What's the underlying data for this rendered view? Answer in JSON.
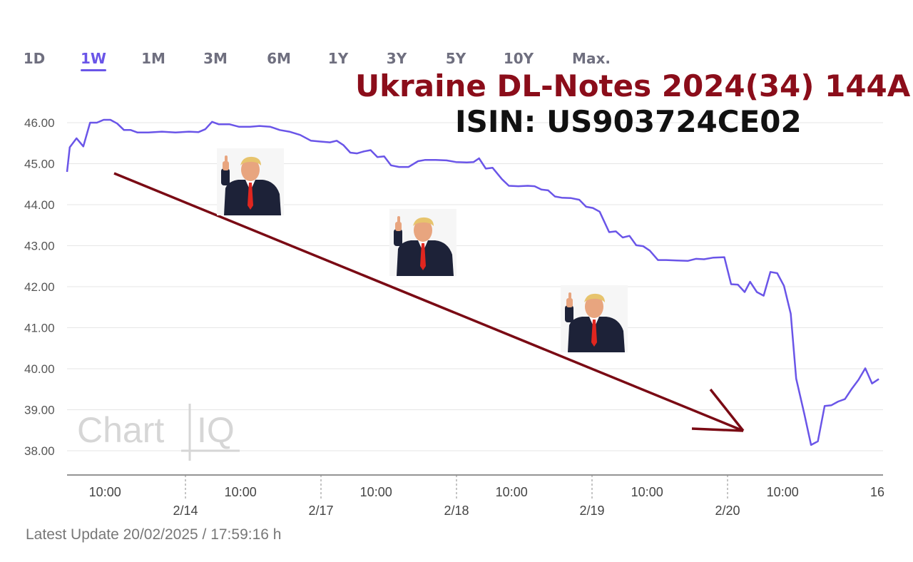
{
  "tabs": [
    {
      "label": "1D",
      "active": false
    },
    {
      "label": "1W",
      "active": true
    },
    {
      "label": "1M",
      "active": false
    },
    {
      "label": "3M",
      "active": false
    },
    {
      "label": "6M",
      "active": false
    },
    {
      "label": "1Y",
      "active": false
    },
    {
      "label": "3Y",
      "active": false
    },
    {
      "label": "5Y",
      "active": false
    },
    {
      "label": "10Y",
      "active": false
    },
    {
      "label": "Max.",
      "active": false
    }
  ],
  "annotation": {
    "title": "Ukraine DL-Notes 2024(34) 144A",
    "isin": "ISIN: US903724CE02",
    "title_color": "#8b0d1a",
    "arrow_color": "#7a0a14",
    "photos": [
      {
        "name": "thumbs-up-photo-1"
      },
      {
        "name": "thumbs-up-photo-2"
      },
      {
        "name": "thumbs-up-photo-3"
      }
    ]
  },
  "watermark": {
    "left": "Chart",
    "right": "IQ"
  },
  "footer": {
    "latest_update": "Latest Update 20/02/2025 / 17:59:16 h"
  },
  "chart_data": {
    "type": "line",
    "line_color": "#6a55e8",
    "ylim": [
      37.4,
      46.3
    ],
    "yticks": [
      "38.00",
      "39.00",
      "40.00",
      "41.00",
      "42.00",
      "43.00",
      "44.00",
      "45.00",
      "46.00"
    ],
    "xlim": [
      0,
      5.92
    ],
    "x_time_ticks": [
      {
        "x": 0.28,
        "label": "10:00"
      },
      {
        "x": 1.28,
        "label": "10:00"
      },
      {
        "x": 2.28,
        "label": "10:00"
      },
      {
        "x": 3.28,
        "label": "10:00"
      },
      {
        "x": 4.28,
        "label": "10:00"
      },
      {
        "x": 5.28,
        "label": "10:00"
      },
      {
        "x": 5.85,
        "label": "16"
      }
    ],
    "x_day_ticks": [
      {
        "x": 1.0,
        "label": "2/14"
      },
      {
        "x": 2.0,
        "label": "2/17"
      },
      {
        "x": 3.0,
        "label": "2/18"
      },
      {
        "x": 4.0,
        "label": "2/19"
      },
      {
        "x": 5.0,
        "label": "2/20"
      }
    ],
    "grid": true,
    "series": [
      {
        "points": [
          [
            0.0,
            44.8
          ],
          [
            0.02,
            45.4
          ],
          [
            0.07,
            45.62
          ],
          [
            0.12,
            45.42
          ],
          [
            0.17,
            46.0
          ],
          [
            0.22,
            46.0
          ],
          [
            0.27,
            46.07
          ],
          [
            0.32,
            46.07
          ],
          [
            0.37,
            45.98
          ],
          [
            0.42,
            45.82
          ],
          [
            0.47,
            45.82
          ],
          [
            0.52,
            45.76
          ],
          [
            0.6,
            45.76
          ],
          [
            0.7,
            45.78
          ],
          [
            0.8,
            45.76
          ],
          [
            0.9,
            45.78
          ],
          [
            0.97,
            45.77
          ],
          [
            1.02,
            45.84
          ],
          [
            1.07,
            46.02
          ],
          [
            1.12,
            45.96
          ],
          [
            1.2,
            45.96
          ],
          [
            1.27,
            45.9
          ],
          [
            1.35,
            45.9
          ],
          [
            1.42,
            45.92
          ],
          [
            1.5,
            45.9
          ],
          [
            1.57,
            45.82
          ],
          [
            1.64,
            45.78
          ],
          [
            1.72,
            45.7
          ],
          [
            1.8,
            45.56
          ],
          [
            1.87,
            45.54
          ],
          [
            1.94,
            45.52
          ],
          [
            1.99,
            45.56
          ],
          [
            2.04,
            45.45
          ],
          [
            2.09,
            45.27
          ],
          [
            2.14,
            45.25
          ],
          [
            2.19,
            45.3
          ],
          [
            2.24,
            45.33
          ],
          [
            2.29,
            45.16
          ],
          [
            2.34,
            45.18
          ],
          [
            2.39,
            44.96
          ],
          [
            2.45,
            44.92
          ],
          [
            2.52,
            44.92
          ],
          [
            2.59,
            45.06
          ],
          [
            2.64,
            45.09
          ],
          [
            2.72,
            45.09
          ],
          [
            2.8,
            45.08
          ],
          [
            2.87,
            45.04
          ],
          [
            2.95,
            45.03
          ],
          [
            3.0,
            45.04
          ],
          [
            3.04,
            45.13
          ],
          [
            3.09,
            44.88
          ],
          [
            3.14,
            44.9
          ],
          [
            3.21,
            44.62
          ],
          [
            3.26,
            44.46
          ],
          [
            3.33,
            44.45
          ],
          [
            3.4,
            44.46
          ],
          [
            3.45,
            44.45
          ],
          [
            3.5,
            44.37
          ],
          [
            3.55,
            44.35
          ],
          [
            3.6,
            44.2
          ],
          [
            3.65,
            44.17
          ],
          [
            3.72,
            44.16
          ],
          [
            3.78,
            44.12
          ],
          [
            3.83,
            43.95
          ],
          [
            3.88,
            43.92
          ],
          [
            3.93,
            43.83
          ],
          [
            4.0,
            43.33
          ],
          [
            4.05,
            43.35
          ],
          [
            4.1,
            43.2
          ],
          [
            4.15,
            43.24
          ],
          [
            4.2,
            43.01
          ],
          [
            4.25,
            42.99
          ],
          [
            4.3,
            42.88
          ],
          [
            4.36,
            42.65
          ],
          [
            4.42,
            42.65
          ],
          [
            4.5,
            42.64
          ],
          [
            4.58,
            42.63
          ],
          [
            4.64,
            42.68
          ],
          [
            4.7,
            42.67
          ],
          [
            4.77,
            42.71
          ],
          [
            4.85,
            42.72
          ],
          [
            4.9,
            42.06
          ],
          [
            4.95,
            42.05
          ],
          [
            5.0,
            41.87
          ],
          [
            5.04,
            42.12
          ],
          [
            5.09,
            41.87
          ],
          [
            5.14,
            41.78
          ],
          [
            5.19,
            42.36
          ],
          [
            5.24,
            42.33
          ],
          [
            5.29,
            42.02
          ],
          [
            5.34,
            41.34
          ],
          [
            5.38,
            39.76
          ],
          [
            5.44,
            38.9
          ],
          [
            5.49,
            38.14
          ],
          [
            5.54,
            38.23
          ],
          [
            5.59,
            39.09
          ],
          [
            5.64,
            39.11
          ],
          [
            5.69,
            39.2
          ],
          [
            5.74,
            39.26
          ],
          [
            5.79,
            39.51
          ],
          [
            5.84,
            39.73
          ],
          [
            5.89,
            40.01
          ],
          [
            5.94,
            39.64
          ],
          [
            5.99,
            39.75
          ]
        ]
      }
    ]
  }
}
